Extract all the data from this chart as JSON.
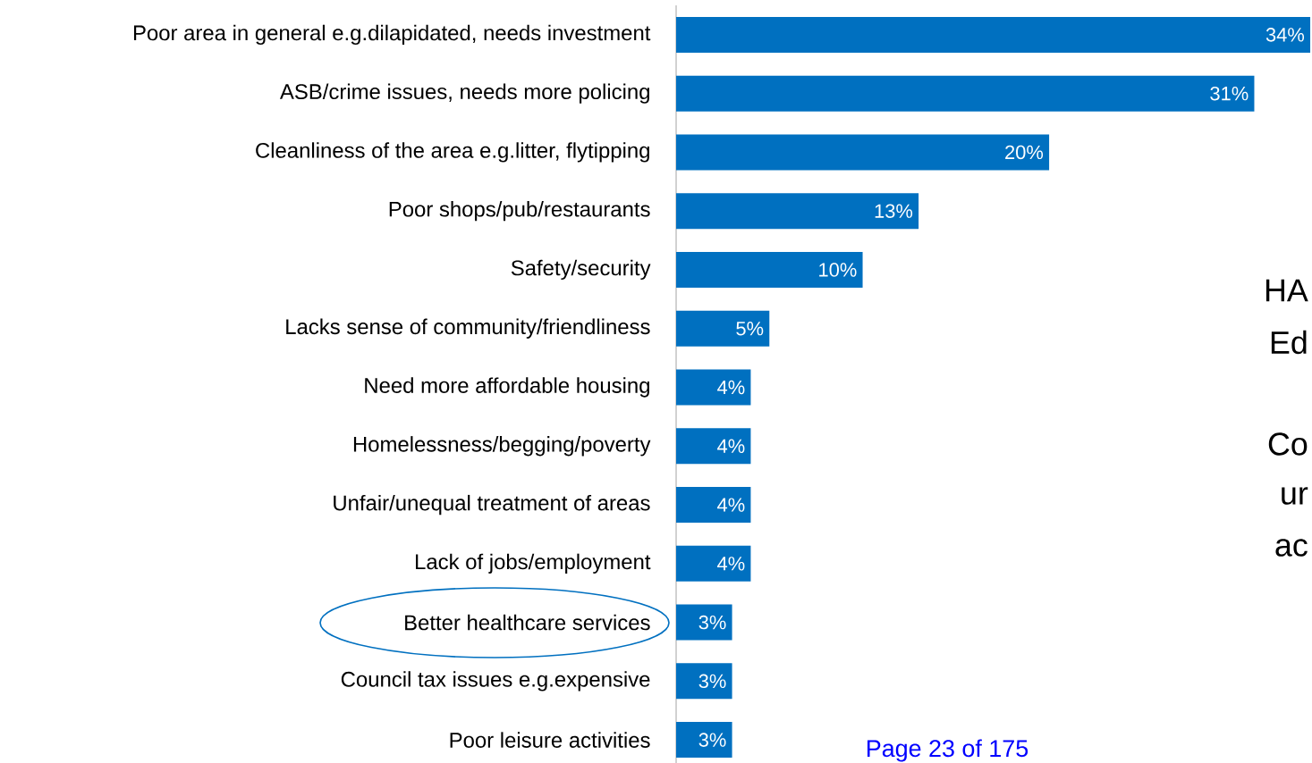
{
  "chart_data": {
    "type": "bar",
    "orientation": "horizontal",
    "color": "#0070c0",
    "categories": [
      "Poor area in general e.g.dilapidated, needs investment",
      "ASB/crime issues, needs more policing",
      "Cleanliness of the area e.g.litter, flytipping",
      "Poor shops/pub/restaurants",
      "Safety/security",
      "Lacks sense of community/friendliness",
      "Need more affordable housing",
      "Homelessness/begging/poverty",
      "Unfair/unequal treatment of areas",
      "Lack of jobs/employment",
      "Better healthcare services",
      "Council tax issues e.g.expensive",
      "Poor leisure activities"
    ],
    "values": [
      34,
      31,
      20,
      13,
      10,
      5,
      4,
      4,
      4,
      4,
      3,
      3,
      3
    ],
    "value_labels": [
      "34%",
      "31%",
      "20%",
      "13%",
      "10%",
      "5%",
      "4%",
      "4%",
      "4%",
      "4%",
      "3%",
      "3%",
      "3%"
    ],
    "annotations": [
      "Page 23 of 175",
      "HA",
      "Ed",
      "Co",
      "ur",
      "ac"
    ]
  }
}
